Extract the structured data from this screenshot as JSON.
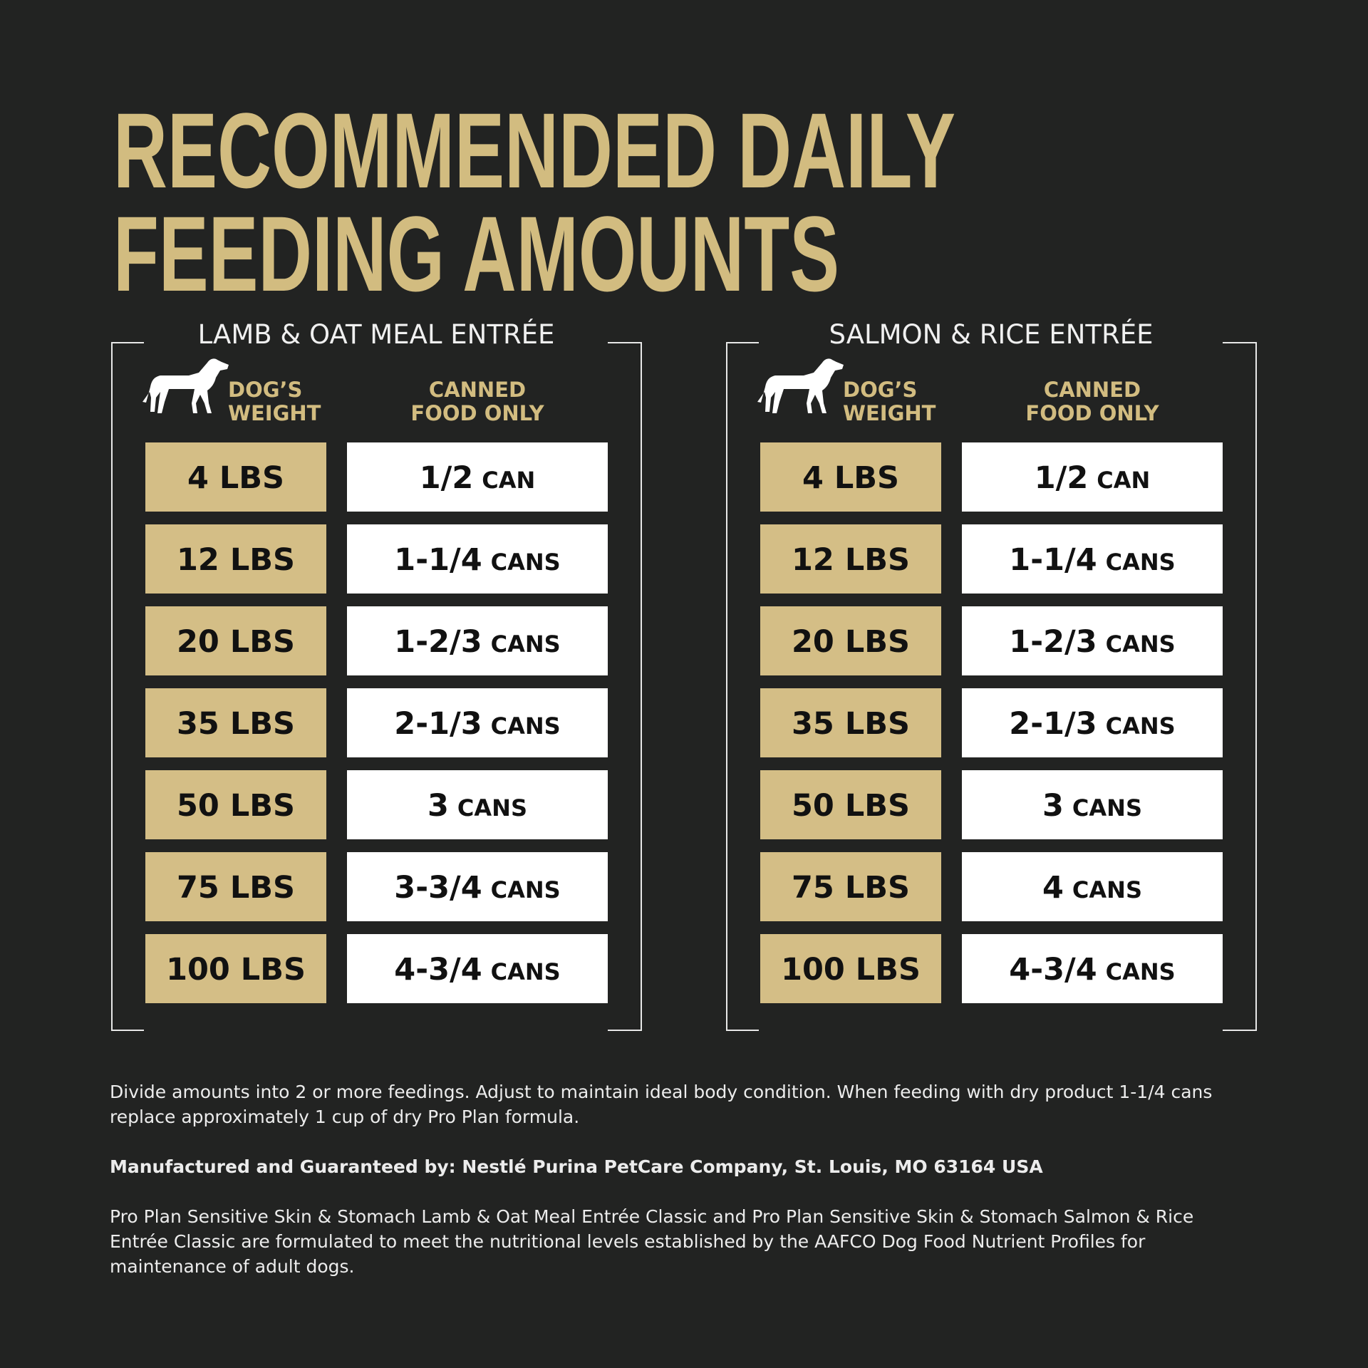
{
  "title": {
    "line1": "RECOMMENDED DAILY",
    "line2": "FEEDING AMOUNTS"
  },
  "tables": [
    {
      "heading": "LAMB  & OAT MEAL ENTRÉE",
      "weight_header": [
        "DOG’S",
        "WEIGHT"
      ],
      "food_header": [
        "CANNED",
        "FOOD ONLY"
      ],
      "rows": [
        {
          "weight": "4 LBS",
          "amount": "1/2",
          "unit": "CAN"
        },
        {
          "weight": "12 LBS",
          "amount": "1-1/4",
          "unit": "CANS"
        },
        {
          "weight": "20 LBS",
          "amount": "1-2/3",
          "unit": "CANS"
        },
        {
          "weight": "35 LBS",
          "amount": "2-1/3",
          "unit": "CANS"
        },
        {
          "weight": "50 LBS",
          "amount": "3",
          "unit": "CANS"
        },
        {
          "weight": "75 LBS",
          "amount": "3-3/4",
          "unit": "CANS"
        },
        {
          "weight": "100 LBS",
          "amount": "4-3/4",
          "unit": "CANS"
        }
      ]
    },
    {
      "heading": "SALMON & RICE ENTRÉE",
      "weight_header": [
        "DOG’S",
        "WEIGHT"
      ],
      "food_header": [
        "CANNED",
        "FOOD ONLY"
      ],
      "rows": [
        {
          "weight": "4 LBS",
          "amount": "1/2",
          "unit": "CAN"
        },
        {
          "weight": "12 LBS",
          "amount": "1-1/4",
          "unit": "CANS"
        },
        {
          "weight": "20 LBS",
          "amount": "1-2/3",
          "unit": "CANS"
        },
        {
          "weight": "35 LBS",
          "amount": "2-1/3",
          "unit": "CANS"
        },
        {
          "weight": "50 LBS",
          "amount": "3",
          "unit": "CANS"
        },
        {
          "weight": "75 LBS",
          "amount": "4",
          "unit": "CANS"
        },
        {
          "weight": "100 LBS",
          "amount": "4-3/4",
          "unit": "CANS"
        }
      ]
    }
  ],
  "footer": {
    "instructions": "Divide amounts into 2 or more feedings. Adjust to maintain ideal body condition. When feeding with dry product 1-1/4 cans replace approximately 1 cup of dry Pro Plan formula.",
    "manufacturer": "Manufactured and Guaranteed by: Nestlé Purina PetCare Company, St. Louis, MO 63164 USA",
    "aafco": "Pro Plan Sensitive Skin & Stomach Lamb & Oat Meal Entrée Classic and Pro Plan Sensitive Skin & Stomach Salmon & Rice Entrée Classic are formulated to meet the nutritional levels established by the AAFCO Dog Food Nutrient Profiles for maintenance of adult dogs."
  }
}
